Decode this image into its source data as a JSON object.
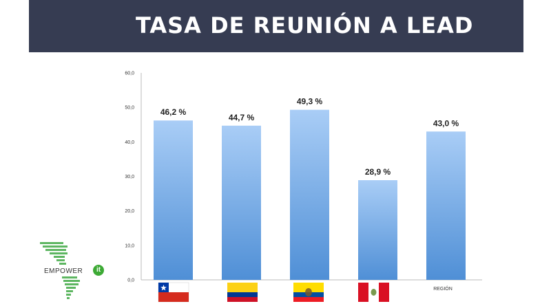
{
  "header": {
    "title": "TASA DE REUNIÓN A LEAD"
  },
  "chart_data": {
    "type": "bar",
    "title": "",
    "xlabel": "",
    "ylabel": "",
    "categories": [
      "Chile",
      "Colombia",
      "Ecuador",
      "Perú",
      "REGIÓN"
    ],
    "category_labels_text": [
      "",
      "",
      "",
      "",
      "REGIÓN"
    ],
    "category_icons": [
      "chile-flag-icon",
      "colombia-flag-icon",
      "ecuador-flag-icon",
      "peru-flag-icon",
      ""
    ],
    "values": [
      46.2,
      44.7,
      49.3,
      28.9,
      43.0
    ],
    "data_labels": [
      "46,2 %",
      "44,7 %",
      "49,3 %",
      "28,9 %",
      "43,0 %"
    ],
    "yticks": [
      "0,0",
      "10,0",
      "20,0",
      "30,0",
      "40,0",
      "50,0",
      "60,0"
    ],
    "ylim": [
      0,
      60
    ],
    "grid": false,
    "legend": "none",
    "colors": {
      "bar_top": "#a9cdf6",
      "bar_bottom": "#4f8fd6",
      "axis": "#bbbbbb",
      "text": "#222222"
    }
  },
  "logo": {
    "text": "EMPOWER",
    "badge": "it",
    "icon": "americas-map-icon"
  },
  "colors": {
    "header_bg": "#363c52",
    "header_text": "#ffffff"
  }
}
